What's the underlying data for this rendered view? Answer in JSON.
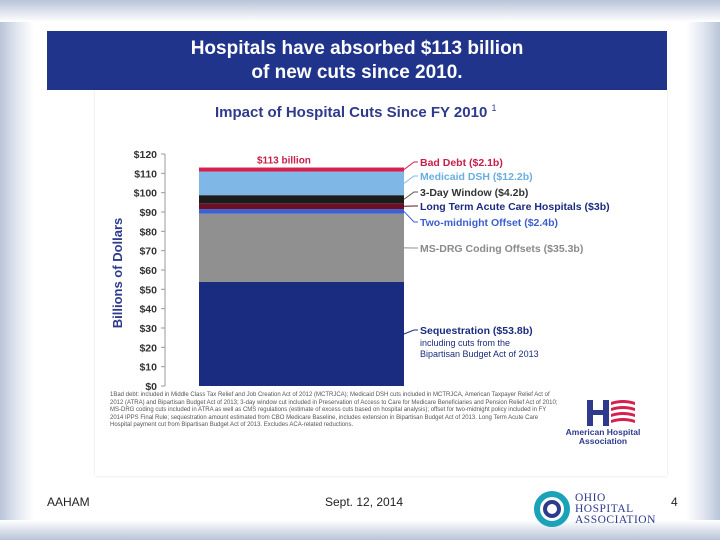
{
  "slide": {
    "title_line1": "Hospitals have absorbed $113 billion",
    "title_line2": "of new cuts since 2010."
  },
  "chart_data": {
    "type": "bar",
    "title": "Impact of Hospital Cuts Since FY 2010",
    "title_superscript": "1",
    "ylabel": "Billions of Dollars",
    "ylim": [
      0,
      120
    ],
    "yticks": [
      0,
      10,
      20,
      30,
      40,
      50,
      60,
      70,
      80,
      90,
      100,
      110,
      120
    ],
    "ytick_labels": [
      "$0",
      "$10",
      "$20",
      "$30",
      "$40",
      "$50",
      "$60",
      "$70",
      "$80",
      "$90",
      "$100",
      "$110",
      "$120"
    ],
    "total_label": "$113 billion",
    "series": [
      {
        "name": "Sequestration ($53.8b)",
        "value": 53.8,
        "color": "#1a2c7f",
        "label_color": "#1a2c7f",
        "note_line1": "including cuts from the",
        "note_line2": "Bipartisan Budget Act of 2013"
      },
      {
        "name": "MS-DRG Coding Offsets ($35.3b)",
        "value": 35.3,
        "color": "#909090",
        "label_color": "#8a8a8a"
      },
      {
        "name": "Two-midnight Offset ($2.4b)",
        "value": 2.4,
        "color": "#3c5fcf",
        "label_color": "#3c5fcf"
      },
      {
        "name": "Long Term Acute Care Hospitals ($3b)",
        "value": 3.0,
        "color": "#6a0f24",
        "label_color": "#1a2c7f"
      },
      {
        "name": "3-Day Window ($4.2b)",
        "value": 4.2,
        "color": "#1c1c1c",
        "label_color": "#333333"
      },
      {
        "name": "Medicaid DSH ($12.2b)",
        "value": 12.2,
        "color": "#7fb8e6",
        "label_color": "#6aaee0"
      },
      {
        "name": "Bad Debt ($2.1b)",
        "value": 2.1,
        "color": "#d6204e",
        "label_color": "#c81e4a"
      }
    ],
    "footnote": "1Bad debt: included in Middle Class Tax Relief and Job Creation Act of 2012 (MCTRJCA); Medicaid DSH cuts included in MCTRJCA, American Taxpayer Relief Act of 2012 (ATRA) and Bipartisan Budget Act of 2013; 3-day window cut included in Preservation of Access to Care for Medicare Beneficiaries and Pension Relief Act of 2010; MS-DRG coding cuts included in ATRA as well as CMS regulations (estimate of excess cuts based on hospital analysis); offset for two-midnight policy included in FY 2014 IPPS Final Rule; sequestration amount estimated from CBO Medicare Baseline, includes extension in Bipartisan Budget Act of 2013. Long Term Acute Care Hospital payment cut from Bipartisan Budget Act of 2013. Excludes ACA-related reductions."
  },
  "logos": {
    "aha_line1": "American Hospital",
    "aha_line2": "Association",
    "oha_line1": "OHIO",
    "oha_line2": "HOSPITAL",
    "oha_line3": "ASSOCIATION",
    "colors": {
      "navy": "#2e3a8c",
      "red": "#d6204e",
      "teal": "#1aa3b8"
    }
  },
  "footer": {
    "left": "AAHAM",
    "center": "Sept. 12, 2014",
    "page": "4"
  }
}
